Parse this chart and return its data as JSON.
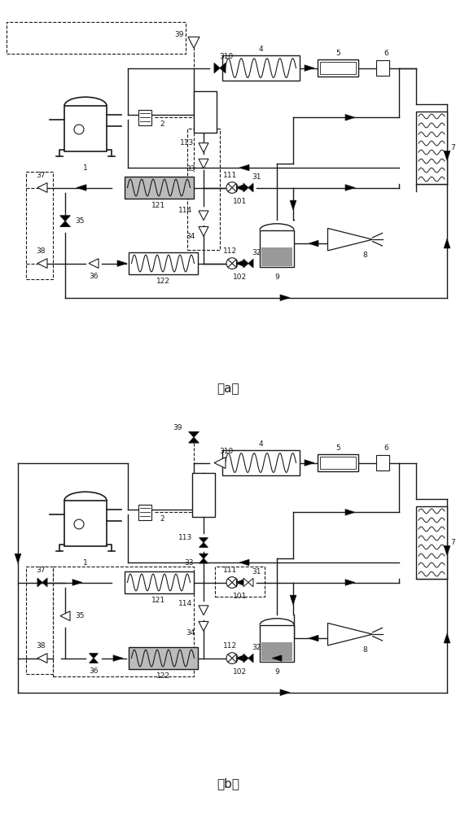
{
  "bg_color": "#ffffff",
  "line_color": "#1a1a1a",
  "lw": 1.0,
  "dlw": 0.8,
  "fs": 6.5
}
